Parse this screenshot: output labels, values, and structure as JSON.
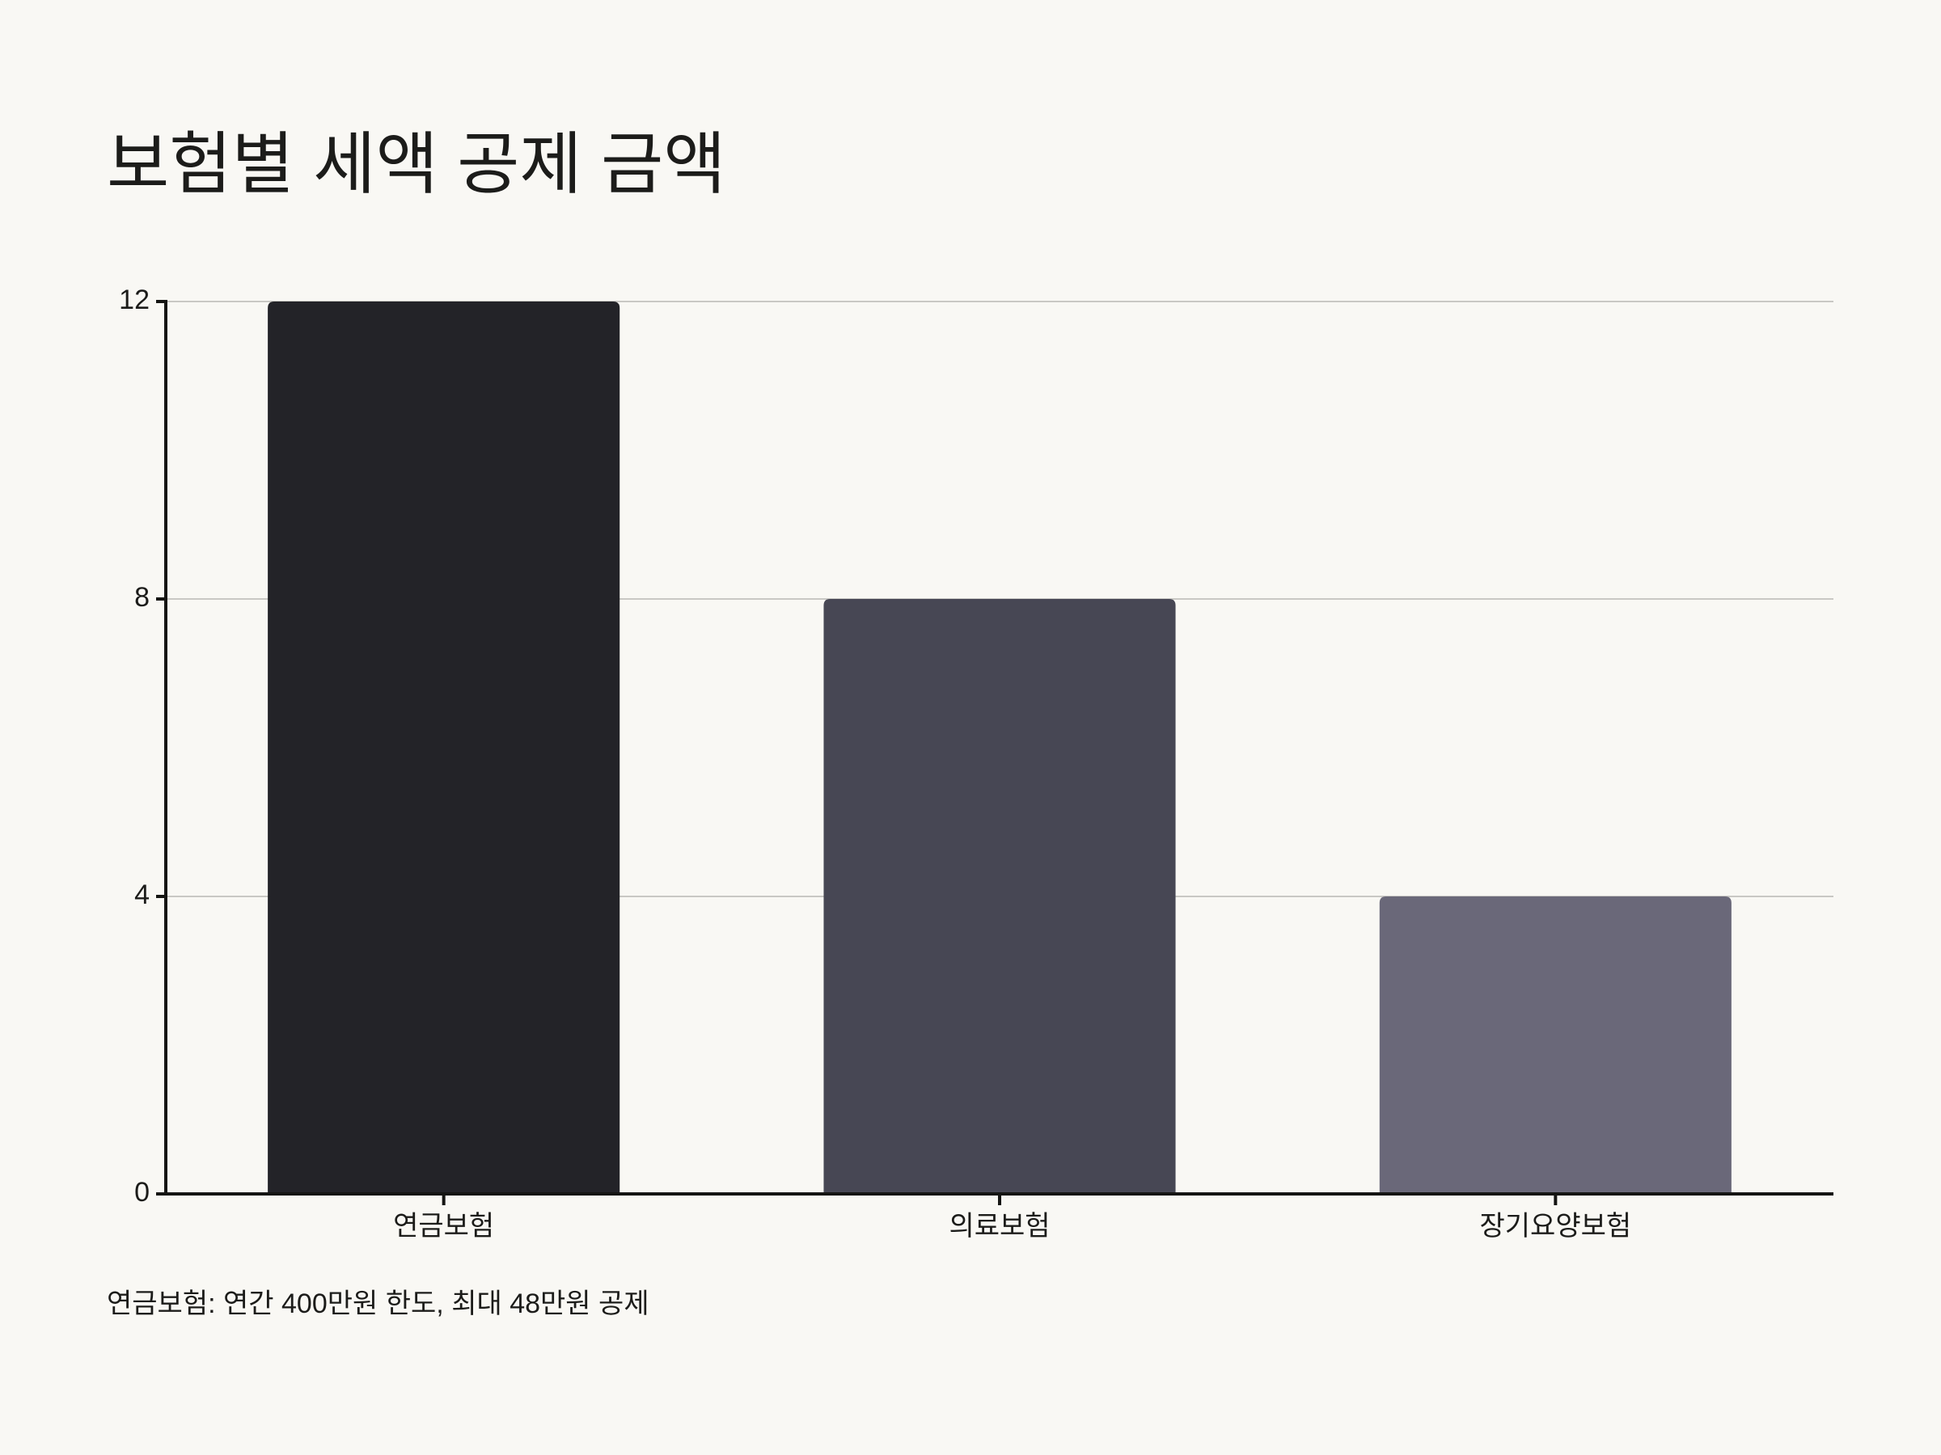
{
  "chart_data": {
    "type": "bar",
    "title": "보험별 세액 공제 금액",
    "categories": [
      "연금보험",
      "의료보험",
      "장기요양보험"
    ],
    "values": [
      12,
      8,
      4
    ],
    "colors": [
      "#232328",
      "#474754",
      "#6a6879"
    ],
    "ylim": [
      0,
      12
    ],
    "yticks": [
      0,
      4,
      8,
      12
    ],
    "grid": true,
    "annotation": "연금보험: 연간 400만원 한도, 최대 48만원 공제"
  }
}
